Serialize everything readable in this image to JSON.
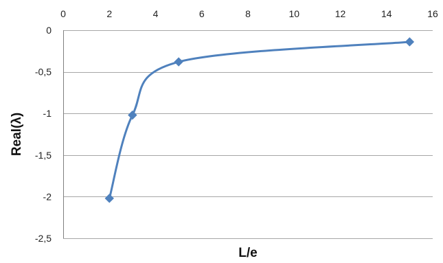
{
  "chart_data": {
    "type": "scatter",
    "style": "smooth line with diamond markers",
    "xlabel": "L/e",
    "ylabel": "Real(λ)",
    "xlim": [
      0,
      16
    ],
    "ylim": [
      -2.5,
      0
    ],
    "x_ticks": [
      0,
      2,
      4,
      6,
      8,
      10,
      12,
      14,
      16
    ],
    "x_tick_labels": [
      "0",
      "2",
      "4",
      "6",
      "8",
      "10",
      "12",
      "14",
      "16"
    ],
    "y_ticks": [
      0,
      -0.5,
      -1,
      -1.5,
      -2,
      -2.5
    ],
    "y_tick_labels": [
      "0",
      "-0,5",
      "-1",
      "-1,5",
      "-2",
      "-2,5"
    ],
    "x_axis_position": "top",
    "grid": "horizontal",
    "legend": "none",
    "series": [
      {
        "color": "#4f81bd",
        "points": [
          {
            "x": 2,
            "y": -2.02
          },
          {
            "x": 3,
            "y": -1.02
          },
          {
            "x": 5,
            "y": -0.38
          },
          {
            "x": 15,
            "y": -0.14
          }
        ]
      }
    ]
  }
}
